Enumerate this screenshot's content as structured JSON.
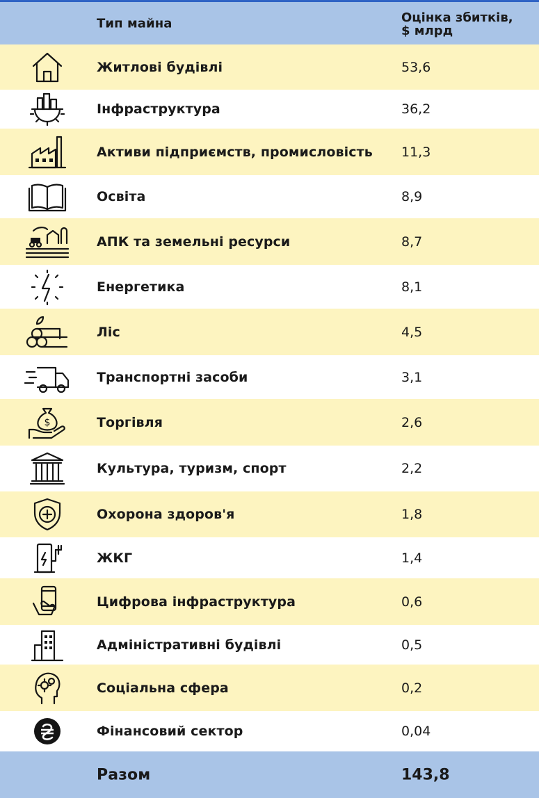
{
  "header": {
    "type_label": "Тип майна",
    "value_label_line1": "Оцінка збитків,",
    "value_label_line2": "$ млрд"
  },
  "rows": [
    {
      "icon": "house-icon",
      "label": "Житлові будівлі",
      "value": "53,6"
    },
    {
      "icon": "city-gear-icon",
      "label": "Інфраструктура",
      "value": "36,2"
    },
    {
      "icon": "factory-icon",
      "label": "Активи підприємств, промисловість",
      "value": "11,3"
    },
    {
      "icon": "book-icon",
      "label": "Освіта",
      "value": "8,9"
    },
    {
      "icon": "farm-tractor-icon",
      "label": "АПК та земельні ресурси",
      "value": "8,7"
    },
    {
      "icon": "lightning-icon",
      "label": "Енергетика",
      "value": "8,1"
    },
    {
      "icon": "logs-icon",
      "label": "Ліс",
      "value": "4,5"
    },
    {
      "icon": "truck-icon",
      "label": "Транспортні засоби",
      "value": "3,1"
    },
    {
      "icon": "money-bag-hand-icon",
      "label": "Торгівля",
      "value": "2,6"
    },
    {
      "icon": "columns-building-icon",
      "label": "Культура, туризм, спорт",
      "value": "2,2"
    },
    {
      "icon": "health-shield-icon",
      "label": "Охорона здоров'я",
      "value": "1,8"
    },
    {
      "icon": "charging-station-icon",
      "label": "ЖКГ",
      "value": "1,4"
    },
    {
      "icon": "smartphone-hand-icon",
      "label": "Цифрова інфраструктура",
      "value": "0,6"
    },
    {
      "icon": "office-building-icon",
      "label": "Адміністративні будівлі",
      "value": "0,5"
    },
    {
      "icon": "head-gears-icon",
      "label": "Соціальна сфера",
      "value": "0,2"
    },
    {
      "icon": "hryvnia-coin-icon",
      "label": "Фінансовий сектор",
      "value": "0,04"
    }
  ],
  "total": {
    "label": "Разом",
    "value": "143,8"
  },
  "colors": {
    "header_bg": "#a9c4e7",
    "stripe_yellow": "#fdf4c0",
    "stripe_white": "#ffffff",
    "top_line": "#2f63c5"
  },
  "chart_data": {
    "type": "table",
    "columns": [
      "Тип майна",
      "Оцінка збитків, $ млрд"
    ],
    "rows": [
      [
        "Житлові будівлі",
        53.6
      ],
      [
        "Інфраструктура",
        36.2
      ],
      [
        "Активи підприємств, промисловість",
        11.3
      ],
      [
        "Освіта",
        8.9
      ],
      [
        "АПК та земельні ресурси",
        8.7
      ],
      [
        "Енергетика",
        8.1
      ],
      [
        "Ліс",
        4.5
      ],
      [
        "Транспортні засоби",
        3.1
      ],
      [
        "Торгівля",
        2.6
      ],
      [
        "Культура, туризм, спорт",
        2.2
      ],
      [
        "Охорона здоров'я",
        1.8
      ],
      [
        "ЖКГ",
        1.4
      ],
      [
        "Цифрова інфраструктура",
        0.6
      ],
      [
        "Адміністративні будівлі",
        0.5
      ],
      [
        "Соціальна сфера",
        0.2
      ],
      [
        "Фінансовий сектор",
        0.04
      ]
    ],
    "total": [
      "Разом",
      143.8
    ]
  }
}
